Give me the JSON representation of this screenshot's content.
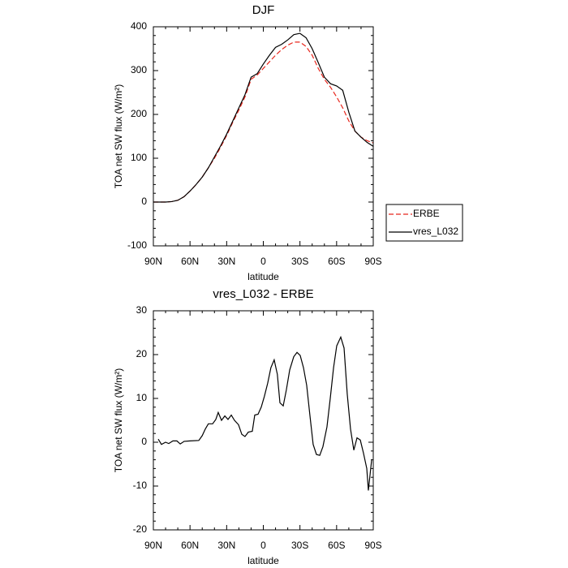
{
  "chart_data": [
    {
      "type": "line",
      "title": "DJF",
      "x_label": "latitude",
      "y_label": "TOA net SW flux (W/m²)",
      "x": [
        90,
        85,
        80,
        75,
        70,
        65,
        60,
        55,
        50,
        45,
        40,
        35,
        30,
        25,
        20,
        15,
        10,
        5,
        0,
        -5,
        -10,
        -15,
        -20,
        -25,
        -30,
        -35,
        -40,
        -45,
        -50,
        -55,
        -60,
        -65,
        -70,
        -75,
        -80,
        -85,
        -90
      ],
      "series": [
        {
          "name": "ERBE",
          "color": "#e8261c",
          "line_style": "dashed",
          "values": [
            0,
            0,
            0,
            1,
            4,
            12,
            25,
            40,
            57,
            78,
            100,
            125,
            152,
            182,
            210,
            240,
            280,
            290,
            305,
            320,
            335,
            348,
            358,
            365,
            365,
            355,
            335,
            305,
            280,
            262,
            240,
            215,
            185,
            162,
            148,
            140,
            135
          ]
        },
        {
          "name": "vres_L032",
          "color": "#000000",
          "line_style": "solid",
          "values": [
            0,
            0,
            0,
            1,
            4,
            12,
            25,
            40,
            57,
            78,
            103,
            128,
            155,
            185,
            215,
            245,
            285,
            293,
            315,
            335,
            353,
            360,
            370,
            382,
            385,
            375,
            350,
            318,
            285,
            270,
            265,
            255,
            205,
            162,
            148,
            136,
            127
          ]
        }
      ],
      "xlim": [
        90,
        -90
      ],
      "xticks": [
        {
          "value": 90,
          "label": "90N"
        },
        {
          "value": 60,
          "label": "60N"
        },
        {
          "value": 30,
          "label": "30N"
        },
        0,
        {
          "value": -30,
          "label": "30S"
        },
        {
          "value": -60,
          "label": "60S"
        },
        {
          "value": -90,
          "label": "90S"
        }
      ],
      "ylim": [
        -100,
        400
      ],
      "yticks": [
        -100,
        0,
        100,
        200,
        300,
        400
      ],
      "legend": "right"
    },
    {
      "type": "line",
      "title": "vres_L032 - ERBE",
      "x_label": "latitude",
      "y_label": "TOA net SW flux (W/m²)",
      "x": [
        86,
        83.4,
        80,
        77.4,
        74,
        70.7,
        68,
        64.8,
        60,
        52.8,
        50,
        47.5,
        45,
        41.5,
        38.9,
        36.9,
        34.2,
        31.5,
        28.9,
        26.2,
        23.6,
        20.3,
        17.6,
        15,
        12.3,
        9,
        7,
        4.3,
        1.7,
        -0.9,
        -3.6,
        -6.2,
        -8.9,
        -11.5,
        -13.6,
        -16.3,
        -18.9,
        -21.6,
        -24.9,
        -27.6,
        -30.2,
        -32.9,
        -35.5,
        -38.2,
        -40.8,
        -43.5,
        -46.2,
        -48.8,
        -52.1,
        -54.8,
        -57.5,
        -60.1,
        -63.4,
        -66.1,
        -68.7,
        -71.4,
        -74.1,
        -76.7,
        -79.4,
        -82,
        -84.7,
        -86,
        -88.7
      ],
      "values": [
        0.7,
        -0.5,
        0,
        -0.3,
        0.3,
        0.3,
        -0.4,
        0.2,
        0.3,
        0.4,
        1.5,
        3,
        4.2,
        4.2,
        5.2,
        6.8,
        5,
        6,
        5.2,
        6.2,
        5,
        4,
        1.8,
        1.3,
        2.3,
        2.5,
        6.2,
        6.4,
        8,
        10.5,
        13.5,
        17,
        18.8,
        15.5,
        9,
        8.3,
        12,
        16.5,
        19.5,
        20.5,
        19.8,
        17,
        13,
        6,
        -0.5,
        -2.8,
        -3,
        -1,
        3.5,
        10,
        17,
        22,
        24,
        21.5,
        11,
        3,
        -1.8,
        1,
        0.5,
        -2.5,
        -6,
        -11,
        -4
      ],
      "color": "#000000",
      "xlim": [
        90,
        -90
      ],
      "xticks": [
        {
          "value": 90,
          "label": "90N"
        },
        {
          "value": 60,
          "label": "60N"
        },
        {
          "value": 30,
          "label": "30N"
        },
        0,
        {
          "value": -30,
          "label": "30S"
        },
        {
          "value": -60,
          "label": "60S"
        },
        {
          "value": -90,
          "label": "90S"
        }
      ],
      "ylim": [
        -20,
        30
      ],
      "yticks": [
        -20,
        -10,
        0,
        10,
        20,
        30
      ]
    }
  ]
}
